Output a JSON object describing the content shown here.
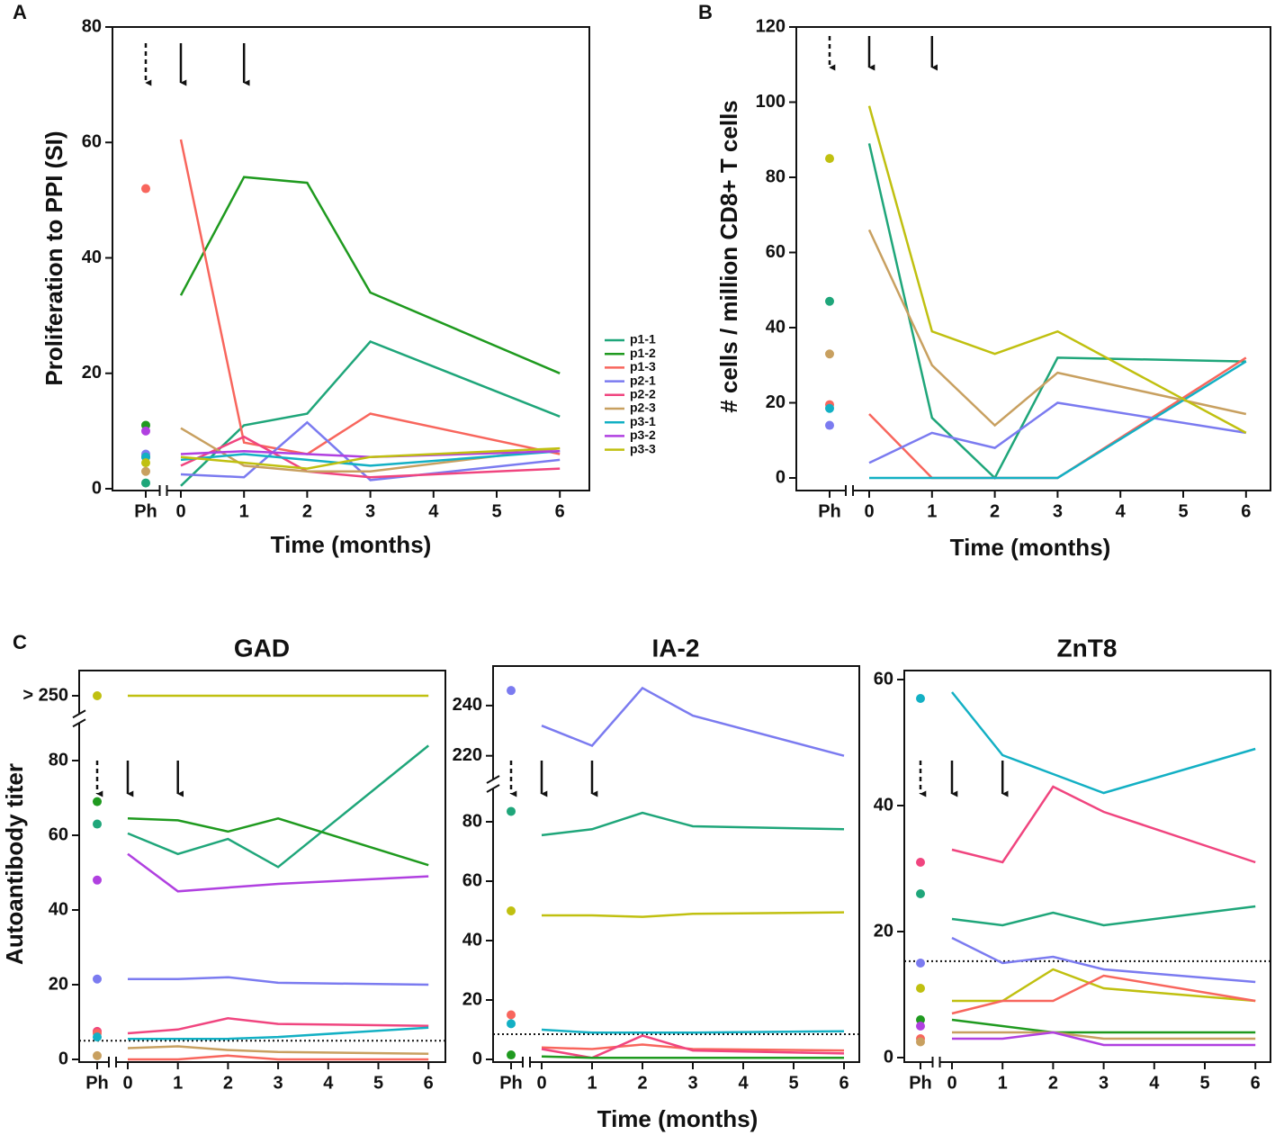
{
  "chart_data": [
    {
      "type": "line",
      "panel": "A",
      "y_label": "Proliferation to PPI (SI)",
      "x_label": "Time (months)",
      "ph_label": "Ph",
      "x": [
        0,
        1,
        2,
        3,
        6
      ],
      "xticks": [
        0,
        1,
        2,
        3,
        4,
        5,
        6
      ],
      "ylim": [
        0,
        80
      ],
      "yticks": [
        0,
        20,
        40,
        60,
        80
      ],
      "legend": "right",
      "series": [
        {
          "name": "p1-1",
          "color": "#1fa67a",
          "ph": 1,
          "values": [
            0.5,
            11,
            13,
            25.5,
            12.5
          ]
        },
        {
          "name": "p1-2",
          "color": "#1f9a1f",
          "ph": 11,
          "values": [
            33.5,
            54,
            53,
            34,
            20
          ]
        },
        {
          "name": "p1-3",
          "color": "#f8665d",
          "ph": 52,
          "values": [
            60.5,
            8,
            6,
            13,
            6
          ]
        },
        {
          "name": "p2-1",
          "color": "#7b7bf0",
          "ph": 6,
          "values": [
            2.5,
            2,
            11.5,
            1.5,
            5
          ]
        },
        {
          "name": "p2-2",
          "color": "#f0457f",
          "ph": 5.5,
          "values": [
            4,
            9,
            3,
            2,
            3.5
          ]
        },
        {
          "name": "p2-3",
          "color": "#c8a060",
          "ph": 3,
          "values": [
            10.5,
            4,
            3,
            3,
            7
          ]
        },
        {
          "name": "p3-1",
          "color": "#13b0c4",
          "ph": 5.5,
          "values": [
            5,
            6,
            5,
            4,
            6.5
          ]
        },
        {
          "name": "p3-2",
          "color": "#b040e0",
          "ph": 10,
          "values": [
            6,
            6.5,
            6,
            5.5,
            6.5
          ]
        },
        {
          "name": "p3-3",
          "color": "#c0c010",
          "ph": 4.5,
          "values": [
            5.5,
            4.5,
            3.5,
            5.5,
            7
          ]
        }
      ]
    },
    {
      "type": "line",
      "panel": "B",
      "y_label": "# cells / million CD8+ T cells",
      "x_label": "Time (months)",
      "ph_label": "Ph",
      "x": [
        0,
        1,
        2,
        3,
        6
      ],
      "xticks": [
        0,
        1,
        2,
        3,
        4,
        5,
        6
      ],
      "ylim": [
        0,
        120
      ],
      "yticks": [
        0,
        20,
        40,
        60,
        80,
        100,
        120
      ],
      "series": [
        {
          "name": "p1-1",
          "color": "#1fa67a",
          "ph": 47,
          "values": [
            89,
            16,
            0,
            32,
            31
          ]
        },
        {
          "name": "p1-3",
          "color": "#f8665d",
          "ph": 19.5,
          "values": [
            17,
            0,
            0,
            0,
            32
          ]
        },
        {
          "name": "p2-1",
          "color": "#7b7bf0",
          "ph": 14,
          "values": [
            4,
            12,
            8,
            20,
            12
          ]
        },
        {
          "name": "p2-3",
          "color": "#c8a060",
          "ph": 33,
          "values": [
            66,
            30,
            14,
            28,
            17
          ]
        },
        {
          "name": "p3-1",
          "color": "#13b0c4",
          "ph": 18.5,
          "values": [
            0,
            0,
            0,
            0,
            31
          ]
        },
        {
          "name": "p3-3",
          "color": "#c0c010",
          "ph": 85,
          "values": [
            99,
            39,
            33,
            39,
            12
          ]
        }
      ]
    },
    {
      "type": "line",
      "panel": "C",
      "title": "GAD",
      "y_label": "Autoantibody titer",
      "ph_label": "Ph",
      "x": [
        0,
        1,
        2,
        3,
        6
      ],
      "xticks": [
        0,
        1,
        2,
        3,
        4,
        5,
        6
      ],
      "ysegments": [
        [
          0,
          90
        ],
        [
          245,
          255
        ]
      ],
      "yticks": [
        0,
        20,
        40,
        60,
        80,
        {
          "value": 250,
          "label": "> 250"
        }
      ],
      "threshold": 5,
      "series": [
        {
          "name": "p3-3",
          "color": "#c0c010",
          "ph": 250,
          "values": [
            250,
            250,
            250,
            250,
            250
          ]
        },
        {
          "name": "p1-1",
          "color": "#1fa67a",
          "ph": 63,
          "values": [
            60.5,
            55,
            59,
            51.5,
            84
          ]
        },
        {
          "name": "p1-2",
          "color": "#1f9a1f",
          "ph": 69,
          "values": [
            64.5,
            64,
            61,
            64.5,
            52
          ]
        },
        {
          "name": "p3-2",
          "color": "#b040e0",
          "ph": 48,
          "values": [
            55,
            45,
            46,
            47,
            49
          ]
        },
        {
          "name": "p2-1",
          "color": "#7b7bf0",
          "ph": 21.5,
          "values": [
            21.5,
            21.5,
            22,
            20.5,
            20
          ]
        },
        {
          "name": "p2-2",
          "color": "#f0457f",
          "ph": 7.5,
          "values": [
            7,
            8,
            11,
            9.5,
            9
          ]
        },
        {
          "name": "p1-3",
          "color": "#f8665d",
          "ph": 7,
          "values": [
            0,
            0,
            1,
            0,
            0
          ]
        },
        {
          "name": "p3-1",
          "color": "#13b0c4",
          "ph": 6,
          "values": [
            5.5,
            5.5,
            5.5,
            6,
            8.5
          ]
        },
        {
          "name": "p2-3",
          "color": "#c8a060",
          "ph": 1,
          "values": [
            3,
            3.5,
            2.5,
            2,
            1.5
          ]
        }
      ]
    },
    {
      "type": "line",
      "title": "IA-2",
      "x_label": "Time (months)",
      "ph_label": "Ph",
      "x": [
        0,
        1,
        2,
        3,
        6
      ],
      "xticks": [
        0,
        1,
        2,
        3,
        4,
        5,
        6
      ],
      "ysegments": [
        [
          0,
          90
        ],
        [
          212,
          250
        ]
      ],
      "yticks": [
        0,
        20,
        40,
        60,
        80,
        220,
        240
      ],
      "threshold": 8.5,
      "series": [
        {
          "name": "p2-1",
          "color": "#7b7bf0",
          "ph": 246,
          "values": [
            232,
            224,
            247,
            236,
            220
          ]
        },
        {
          "name": "p1-1",
          "color": "#1fa67a",
          "ph": 83.5,
          "values": [
            75.5,
            77.5,
            83,
            78.5,
            77.5
          ]
        },
        {
          "name": "p3-3",
          "color": "#c0c010",
          "ph": 50,
          "values": [
            48.5,
            48.5,
            48,
            49,
            49.5
          ]
        },
        {
          "name": "p1-3",
          "color": "#f8665d",
          "ph": 15,
          "values": [
            4,
            3.5,
            5,
            3.5,
            3
          ]
        },
        {
          "name": "p3-1",
          "color": "#13b0c4",
          "ph": 12,
          "values": [
            10,
            9,
            9,
            9,
            9.5
          ]
        },
        {
          "name": "p2-2",
          "color": "#f0457f",
          "ph": null,
          "values": [
            3.5,
            0.5,
            8,
            3,
            2
          ]
        },
        {
          "name": "p1-2",
          "color": "#1f9a1f",
          "ph": 1.5,
          "values": [
            1,
            0.5,
            0.5,
            0.5,
            0.5
          ]
        }
      ]
    },
    {
      "type": "line",
      "title": "ZnT8",
      "ph_label": "Ph",
      "x": [
        0,
        1,
        2,
        3,
        6
      ],
      "xticks": [
        0,
        1,
        2,
        3,
        4,
        5,
        6
      ],
      "ylim": [
        0,
        60
      ],
      "yticks": [
        0,
        20,
        40,
        60
      ],
      "threshold": 15.3,
      "series": [
        {
          "name": "p3-1",
          "color": "#13b0c4",
          "ph": 57,
          "values": [
            58,
            48,
            45,
            42,
            49
          ]
        },
        {
          "name": "p2-2",
          "color": "#f0457f",
          "ph": 31,
          "values": [
            33,
            31,
            43,
            39,
            31
          ]
        },
        {
          "name": "p1-1",
          "color": "#1fa67a",
          "ph": 26,
          "values": [
            22,
            21,
            23,
            21,
            24
          ]
        },
        {
          "name": "p2-1",
          "color": "#7b7bf0",
          "ph": 15,
          "values": [
            19,
            15,
            16,
            14,
            12
          ]
        },
        {
          "name": "p3-3",
          "color": "#c0c010",
          "ph": 11,
          "values": [
            9,
            9,
            14,
            11,
            9
          ]
        },
        {
          "name": "p1-3",
          "color": "#f8665d",
          "ph": 3,
          "values": [
            7,
            9,
            9,
            13,
            9
          ]
        },
        {
          "name": "p1-2",
          "color": "#1f9a1f",
          "ph": 6,
          "values": [
            6,
            5,
            4,
            4,
            4
          ]
        },
        {
          "name": "p2-3",
          "color": "#c8a060",
          "ph": 2.5,
          "values": [
            4,
            4,
            4,
            3,
            3
          ]
        },
        {
          "name": "p3-2",
          "color": "#b040e0",
          "ph": 5,
          "values": [
            3,
            3,
            4,
            2,
            2
          ]
        }
      ]
    }
  ]
}
